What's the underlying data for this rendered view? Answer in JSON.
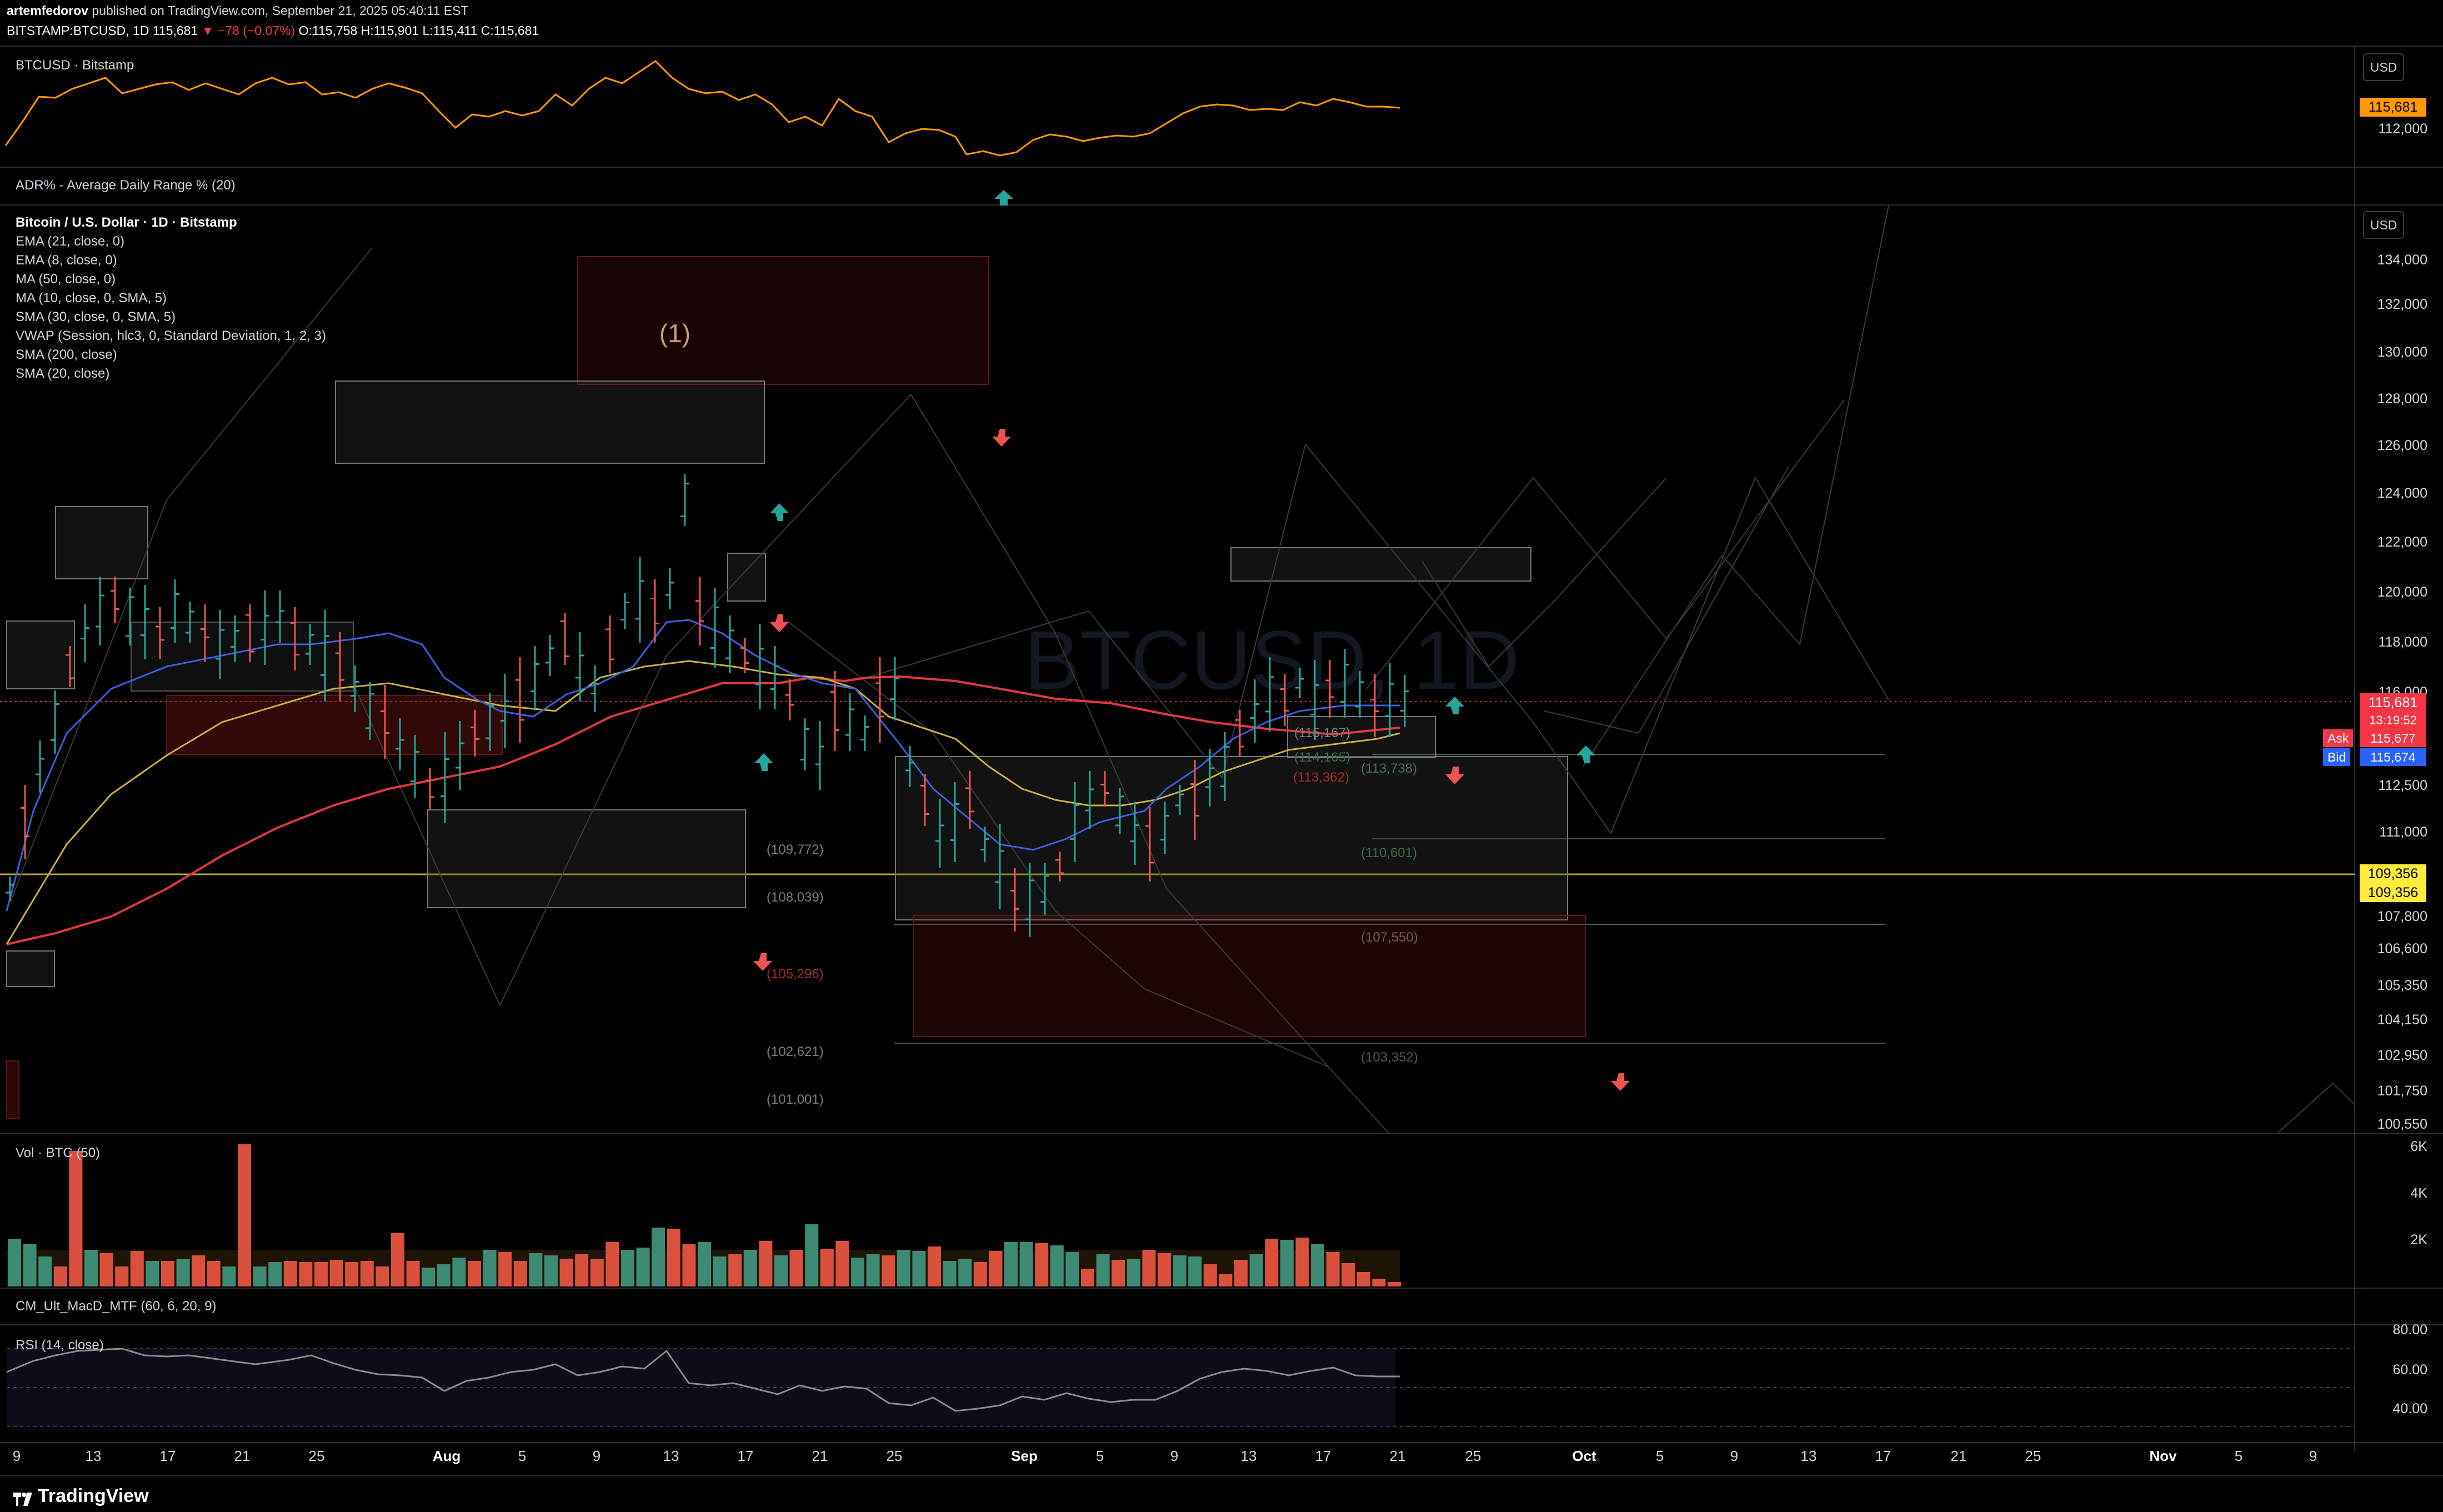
{
  "header": {
    "author": "artemfedorov",
    "published_text": "published on TradingView.com, September 21, 2025 05:40:11 EST",
    "symbol": "BITSTAMP:BTCUSD, 1D",
    "last": "115,681",
    "change": "▼ −78 (−0.07%)",
    "ohlc": "O:115,758  H:115,901  L:115,411  C:115,681"
  },
  "panes": {
    "top_title": "BTCUSD · Bitstamp",
    "adr_title": "ADR% - Average Daily Range % (20)",
    "main_title": "Bitcoin / U.S. Dollar · 1D · Bitstamp",
    "indicators": [
      "EMA (21, close, 0)",
      "EMA (8, close, 0)",
      "MA (50, close, 0)",
      "MA (10, close, 0, SMA, 5)",
      "SMA (30, close, 0, SMA, 5)",
      "VWAP (Session, hlc3, 0, Standard Deviation, 1, 2, 3)",
      "SMA (200, close)",
      "SMA (20, close)"
    ],
    "volume_title": "Vol · BTC (50)",
    "macd_title": "CM_Ult_MacD_MTF (60, 6, 20, 9)",
    "rsi_title": "RSI (14, close)"
  },
  "watermark": "BTCUSD, 1D",
  "annotation_label": "(1)",
  "price_axis": {
    "currency": "USD",
    "top_ticks": [
      "112,000"
    ],
    "top_price_tag": "115,681",
    "main_ticks": [
      "134,000",
      "132,000",
      "130,000",
      "128,000",
      "126,000",
      "124,000",
      "122,000",
      "120,000",
      "118,000",
      "116,000",
      "112,500",
      "111,000",
      "107,800",
      "106,600",
      "105,350",
      "104,150",
      "102,950",
      "101,750",
      "100,550"
    ],
    "last_price": "115,681",
    "countdown": "13:19:52",
    "ask_label": "Ask",
    "ask": "115,677",
    "bid_label": "Bid",
    "bid": "115,674",
    "level_tag_1": "109,356",
    "level_tag_2": "109,356",
    "volume_ticks": [
      "6K",
      "4K",
      "2K"
    ],
    "rsi_ticks": [
      "80.00",
      "60.00",
      "40.00"
    ]
  },
  "levels": {
    "l_109772": "(109,772)",
    "l_108039": "(108,039)",
    "l_105296": "(105,296)",
    "l_102621": "(102,621)",
    "l_101001": "(101,001)",
    "l_115167": "(115,167)",
    "l_114165": "(114,165)",
    "l_113738": "(113,738)",
    "l_113362": "(113,362)",
    "l_110601": "(110,601)",
    "l_107550": "(107,550)",
    "l_103352": "(103,352)"
  },
  "time_axis": [
    "9",
    "13",
    "17",
    "21",
    "25",
    "Aug",
    "5",
    "9",
    "13",
    "17",
    "21",
    "25",
    "Sep",
    "5",
    "9",
    "13",
    "17",
    "21",
    "25",
    "Oct",
    "5",
    "9",
    "13",
    "17",
    "21",
    "25",
    "Nov",
    "5",
    "9"
  ],
  "footer": {
    "brand": "TradingView"
  },
  "colors": {
    "up": "#26a69a",
    "down": "#ef5350",
    "price_line": "#ff9800",
    "ema": "#2962ff",
    "ma50": "#f23645",
    "sma": "#ffeb3b"
  }
}
